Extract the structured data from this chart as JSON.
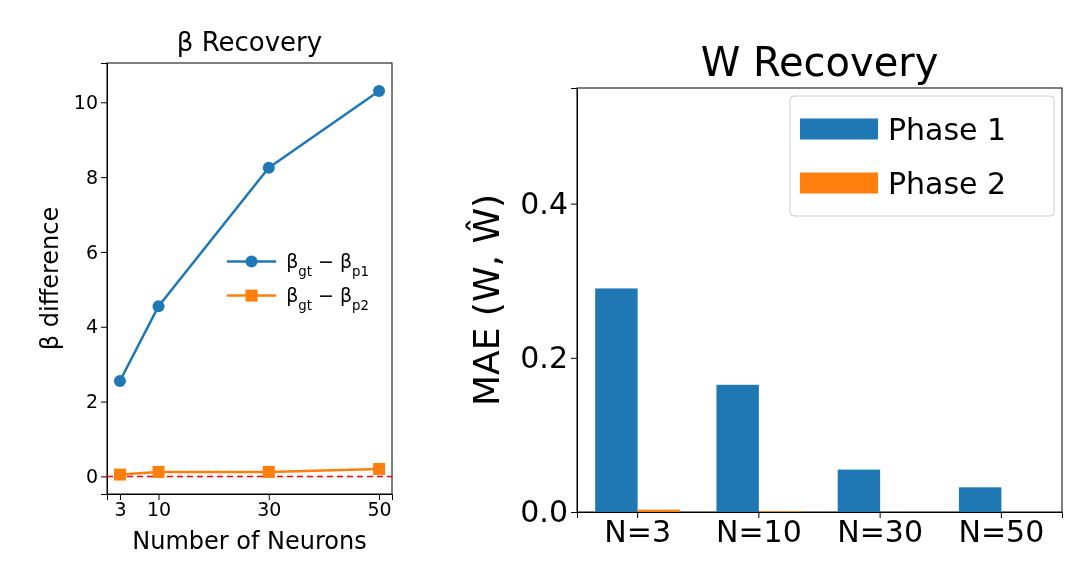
{
  "chart_data": [
    {
      "type": "line",
      "title": "β Recovery",
      "xlabel": "Number of Neurons",
      "ylabel": "β difference",
      "x": [
        3,
        10,
        30,
        50
      ],
      "series": [
        {
          "name": "β$_{gt}$ − β$_{p1}$",
          "color": "#1f77b4",
          "marker": "circle",
          "values": [
            2.55,
            4.55,
            8.25,
            10.3
          ]
        },
        {
          "name": "β$_{gt}$ − β$_{p2}$",
          "color": "#ff7f0e",
          "marker": "square",
          "values": [
            0.05,
            0.12,
            0.12,
            0.2
          ]
        }
      ],
      "xlim": [
        0.65,
        52.35
      ],
      "xticks": [
        3,
        10,
        30,
        50
      ],
      "ylim": [
        -0.47,
        11.05
      ],
      "yticks": [
        0,
        2,
        4,
        6,
        8,
        10
      ],
      "ref_lines": [
        {
          "axis": "y",
          "value": 0,
          "color": "#ff0000",
          "line_style": "dashed"
        }
      ],
      "legend": "right",
      "grid": false
    },
    {
      "type": "bar",
      "title": "W Recovery",
      "ylabel": "MAE (W, Ŵ)",
      "categories": [
        "N=3",
        "N=10",
        "N=30",
        "N=50"
      ],
      "series": [
        {
          "name": "Phase 1",
          "color": "#1f77b4",
          "values": [
            0.29,
            0.165,
            0.055,
            0.032
          ]
        },
        {
          "name": "Phase 2",
          "color": "#ff7f0e",
          "values": [
            0.003,
            0.001,
            0,
            0
          ]
        }
      ],
      "ylim": [
        0,
        0.55
      ],
      "yticks": [
        {
          "value": 0,
          "label": "0.0"
        },
        {
          "value": 0.2,
          "label": "0.2"
        },
        {
          "value": 0.4,
          "label": "0.4"
        }
      ],
      "legend": "top right",
      "grid": false
    }
  ]
}
